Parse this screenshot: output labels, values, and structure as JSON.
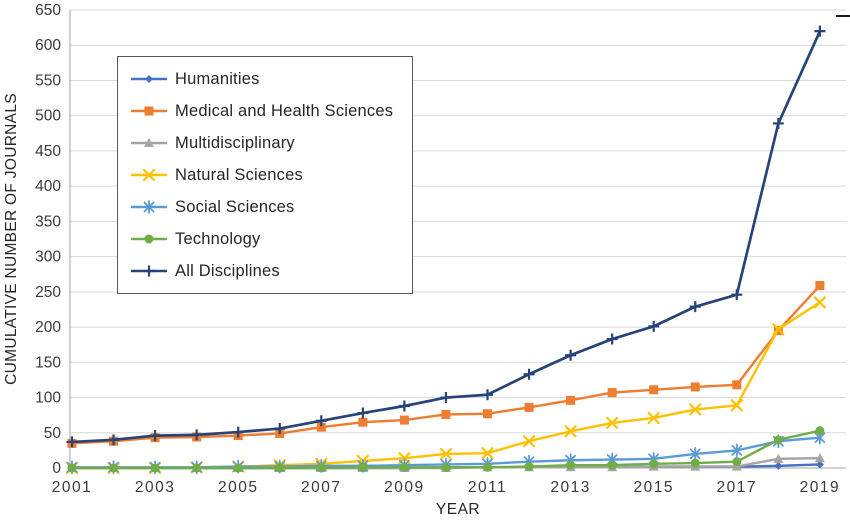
{
  "figure": {
    "background": "#ffffff"
  },
  "chart_data": {
    "type": "line",
    "title": "",
    "xlabel": "YEAR",
    "ylabel": "CUMULATIVE NUMBER OF JOURNALS",
    "x": [
      2001,
      2002,
      2003,
      2004,
      2005,
      2006,
      2007,
      2008,
      2009,
      2010,
      2011,
      2012,
      2013,
      2014,
      2015,
      2016,
      2017,
      2018,
      2019
    ],
    "x_tick_labels": [
      "2001",
      "2003",
      "2005",
      "2007",
      "2009",
      "2011",
      "2013",
      "2015",
      "2017",
      "2019"
    ],
    "x_tick_years": [
      2001,
      2003,
      2005,
      2007,
      2009,
      2011,
      2013,
      2015,
      2017,
      2019
    ],
    "y_ticks": [
      0,
      50,
      100,
      150,
      200,
      250,
      300,
      350,
      400,
      450,
      500,
      550,
      600,
      650
    ],
    "ylim": [
      0,
      650
    ],
    "grid": "horizontal",
    "legend_position": "upper-left-inside",
    "axis_color": "#a6a6a6",
    "gridline_color": "#d9d9d9",
    "tick_label_color": "#3a3a3a",
    "series": [
      {
        "name": "Humanities",
        "color": "#4472C4",
        "marker": "diamond",
        "values": [
          0,
          0,
          0,
          0,
          0,
          0,
          0,
          0,
          0,
          1,
          1,
          1,
          1,
          1,
          2,
          2,
          2,
          3,
          5
        ]
      },
      {
        "name": "Medical and Health Sciences",
        "color": "#ED7D31",
        "marker": "square",
        "values": [
          35,
          38,
          43,
          44,
          46,
          49,
          58,
          65,
          68,
          76,
          77,
          86,
          96,
          107,
          111,
          115,
          118,
          195,
          259
        ]
      },
      {
        "name": "Multidisciplinary",
        "color": "#A5A5A5",
        "marker": "triangle",
        "values": [
          0,
          0,
          0,
          0,
          0,
          0,
          0,
          0,
          0,
          0,
          1,
          1,
          1,
          1,
          2,
          2,
          2,
          13,
          14
        ]
      },
      {
        "name": "Natural Sciences",
        "color": "#FFC000",
        "marker": "x",
        "values": [
          0,
          0,
          0,
          1,
          2,
          4,
          6,
          10,
          14,
          20,
          21,
          38,
          52,
          64,
          71,
          83,
          89,
          197,
          235
        ]
      },
      {
        "name": "Social Sciences",
        "color": "#5B9BD5",
        "marker": "asterisk",
        "values": [
          1,
          1,
          1,
          1,
          2,
          2,
          3,
          3,
          4,
          5,
          6,
          9,
          11,
          12,
          13,
          20,
          25,
          38,
          43
        ]
      },
      {
        "name": "Technology",
        "color": "#70AD47",
        "marker": "circle",
        "values": [
          0,
          0,
          0,
          0,
          0,
          0,
          0,
          1,
          1,
          1,
          1,
          2,
          4,
          4,
          6,
          7,
          9,
          40,
          53
        ]
      },
      {
        "name": "All Disciplines",
        "color": "#264478",
        "marker": "plus",
        "values": [
          37,
          40,
          46,
          47,
          51,
          56,
          67,
          78,
          88,
          100,
          104,
          133,
          160,
          183,
          201,
          229,
          246,
          489,
          620
        ]
      }
    ]
  }
}
